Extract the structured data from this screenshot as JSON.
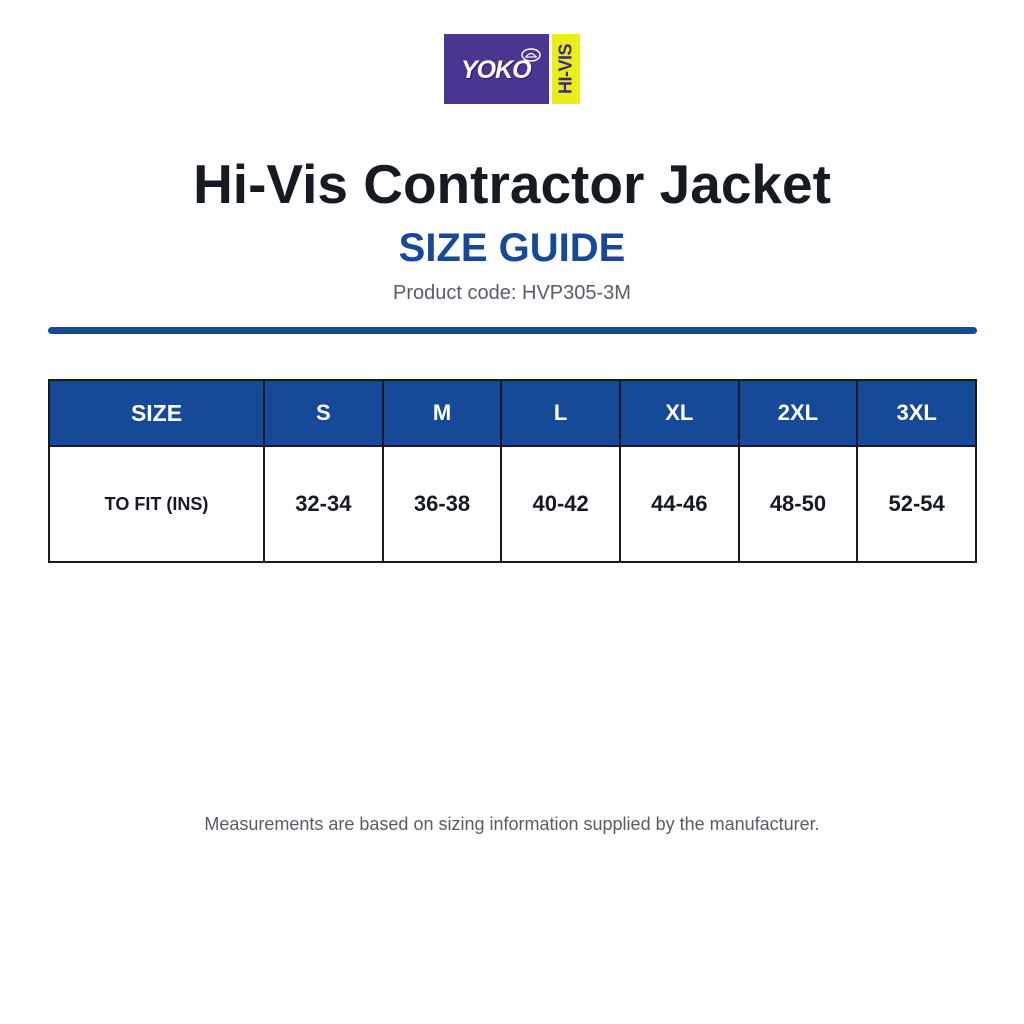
{
  "logo": {
    "wordmark": "YOKO",
    "side_text": "HI-VIS",
    "colors": {
      "primary": "#4a3590",
      "accent": "#e9ee16"
    }
  },
  "header": {
    "title": "Hi-Vis Contractor Jacket",
    "subtitle": "SIZE GUIDE",
    "product_code": "Product code: HVP305-3M"
  },
  "table": {
    "header_label": "SIZE",
    "sizes": [
      "S",
      "M",
      "L",
      "XL",
      "2XL",
      "3XL"
    ],
    "rows": [
      {
        "label": "TO FIT (INS)",
        "values": [
          "32-34",
          "36-38",
          "40-42",
          "44-46",
          "48-50",
          "52-54"
        ]
      }
    ]
  },
  "footnote": "Measurements are based on sizing information supplied by the manufacturer.",
  "colors": {
    "brand_blue": "#164a98",
    "text_dark": "#161a23",
    "text_muted": "#585d66"
  }
}
